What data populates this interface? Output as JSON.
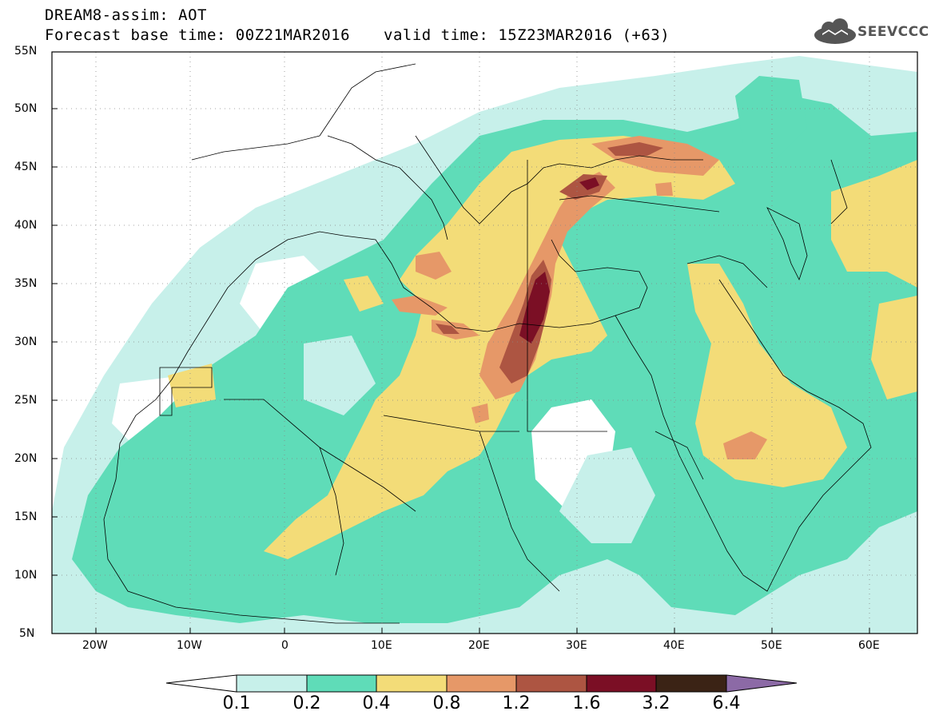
{
  "title": {
    "line1": "DREAM8-assim: AOT",
    "line2": "Forecast base time: 00Z21MAR2016",
    "valid": "valid time: 15Z23MAR2016 (+63)"
  },
  "logo": {
    "text": "SEEVCCC",
    "icon": "cloud-logo-icon"
  },
  "axes": {
    "lon_labels": [
      "20W",
      "10W",
      "0",
      "10E",
      "20E",
      "30E",
      "40E",
      "50E",
      "60E"
    ],
    "lat_labels": [
      "55N",
      "50N",
      "45N",
      "40N",
      "35N",
      "30N",
      "25N",
      "20N",
      "15N",
      "10N",
      "5N"
    ],
    "lon_range": [
      -25,
      65
    ],
    "lat_range": [
      5,
      55
    ]
  },
  "colorbar": {
    "labels": [
      "0.1",
      "0.2",
      "0.4",
      "0.8",
      "1.2",
      "1.6",
      "3.2",
      "6.4"
    ],
    "colors": [
      "#ffffff",
      "#c7f0ea",
      "#5fdcb8",
      "#f3dc78",
      "#e69868",
      "#ad5542",
      "#7b0f25",
      "#3b2315",
      "#8c6aa6"
    ]
  }
}
